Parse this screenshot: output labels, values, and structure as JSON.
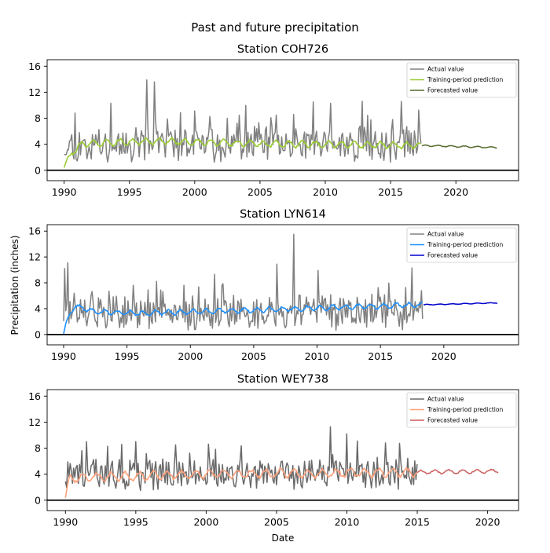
{
  "suptitle": "Past and future precipitation",
  "ylabel": "Precipitation (inches)",
  "xlabel": "Date",
  "chart_data": [
    {
      "type": "line",
      "title": "Station COH726",
      "xlim": [
        1988.7,
        2024.8
      ],
      "ylim": [
        -1.6,
        17.0
      ],
      "x_ticks": [
        1990,
        1995,
        2000,
        2005,
        2010,
        2015,
        2020
      ],
      "y_ticks": [
        0,
        4,
        8,
        12,
        16
      ],
      "hline": 0,
      "legend": "top-right",
      "series": [
        {
          "name": "Actual value",
          "color": "#808080",
          "start": 1990.0,
          "end": 2017.4,
          "step": 0.0833,
          "mean": 4.0,
          "seed": 11,
          "spread": 1.9,
          "spikes": [
            [
              1996.3,
              13.9
            ],
            [
              1996.9,
              13.6
            ],
            [
              1993.6,
              10.3
            ],
            [
              2009.1,
              10.5
            ],
            [
              2010.4,
              10.3
            ],
            [
              2012.8,
              10.6
            ],
            [
              2015.8,
              10.6
            ]
          ]
        },
        {
          "name": "Training-period prediction",
          "color": "#9acd32",
          "start": 1990.0,
          "end": 2017.4,
          "step": 0.0833,
          "trend": [
            [
              1990.0,
              0.5
            ],
            [
              1990.6,
              2.8
            ],
            [
              1991.5,
              4.1
            ],
            [
              1997.0,
              4.5
            ],
            [
              2005.0,
              4.1
            ],
            [
              2017.4,
              3.8
            ]
          ],
          "wiggle": 0.45,
          "seed": 21
        },
        {
          "name": "Forecasted value",
          "color": "#556b2f",
          "start": 2017.4,
          "end": 2023.2,
          "step": 0.0833,
          "trend": [
            [
              2017.4,
              3.8
            ],
            [
              2023.2,
              3.5
            ]
          ],
          "wiggle": 0.1,
          "seed": 31
        }
      ]
    },
    {
      "type": "line",
      "title": "Station LYN614",
      "xlim": [
        1988.7,
        2025.9
      ],
      "ylim": [
        -1.6,
        17.0
      ],
      "x_ticks": [
        1990,
        1995,
        2000,
        2005,
        2010,
        2015,
        2020
      ],
      "y_ticks": [
        0,
        4,
        8,
        12,
        16
      ],
      "hline": 0,
      "legend": "top-right",
      "series": [
        {
          "name": "Actual value",
          "color": "#808080",
          "start": 1990.0,
          "end": 2018.4,
          "step": 0.0833,
          "mean": 3.4,
          "seed": 12,
          "spread": 1.8,
          "spikes": [
            [
              1990.3,
              11.1
            ],
            [
              1990.1,
              10.2
            ],
            [
              2008.2,
              15.5
            ],
            [
              2006.8,
              10.9
            ],
            [
              2010.1,
              9.9
            ],
            [
              2001.9,
              9.3
            ],
            [
              2017.5,
              10.3
            ]
          ]
        },
        {
          "name": "Training-period prediction",
          "color": "#1e90ff",
          "start": 1990.0,
          "end": 2018.4,
          "step": 0.0833,
          "trend": [
            [
              1990.0,
              0.2
            ],
            [
              1990.4,
              2.8
            ],
            [
              1990.9,
              4.4
            ],
            [
              1992.5,
              3.5
            ],
            [
              1996.0,
              3.3
            ],
            [
              2005.0,
              3.8
            ],
            [
              2018.4,
              4.6
            ]
          ],
          "wiggle": 0.35,
          "seed": 22
        },
        {
          "name": "Forecasted value",
          "color": "#0000cd",
          "start": 2018.4,
          "end": 2024.3,
          "step": 0.0833,
          "trend": [
            [
              2018.4,
              4.6
            ],
            [
              2024.3,
              4.9
            ]
          ],
          "wiggle": 0.05,
          "seed": 32
        }
      ]
    },
    {
      "type": "line",
      "title": "Station WEY738",
      "xlim": [
        1988.7,
        2022.2
      ],
      "ylim": [
        -1.6,
        17.0
      ],
      "x_ticks": [
        1990,
        1995,
        2000,
        2005,
        2010,
        2015,
        2020
      ],
      "y_ticks": [
        0,
        4,
        8,
        12,
        16
      ],
      "hline": 0,
      "legend": "top-right",
      "series": [
        {
          "name": "Actual value",
          "color": "#696969",
          "start": 1990.0,
          "end": 2015.0,
          "step": 0.0833,
          "mean": 4.0,
          "seed": 13,
          "spread": 1.7,
          "spikes": [
            [
              2008.8,
              11.3
            ],
            [
              1991.5,
              9.0
            ],
            [
              1995.0,
              9.0
            ],
            [
              2010.0,
              10.2
            ],
            [
              2012.7,
              8.8
            ],
            [
              1997.8,
              8.5
            ]
          ]
        },
        {
          "name": "Training-period prediction",
          "color": "#ffa07a",
          "start": 1990.0,
          "end": 2015.0,
          "step": 0.0833,
          "trend": [
            [
              1990.0,
              0.5
            ],
            [
              1990.3,
              3.2
            ],
            [
              1991.0,
              3.5
            ],
            [
              2000.0,
              4.0
            ],
            [
              2015.0,
              4.3
            ]
          ],
          "wiggle": 0.6,
          "seed": 23
        },
        {
          "name": "Forecasted value",
          "color": "#cd5c5c",
          "start": 2015.0,
          "end": 2020.8,
          "step": 0.0833,
          "trend": [
            [
              2015.0,
              4.3
            ],
            [
              2020.8,
              4.5
            ]
          ],
          "wiggle": 0.25,
          "seed": 33
        }
      ]
    }
  ]
}
